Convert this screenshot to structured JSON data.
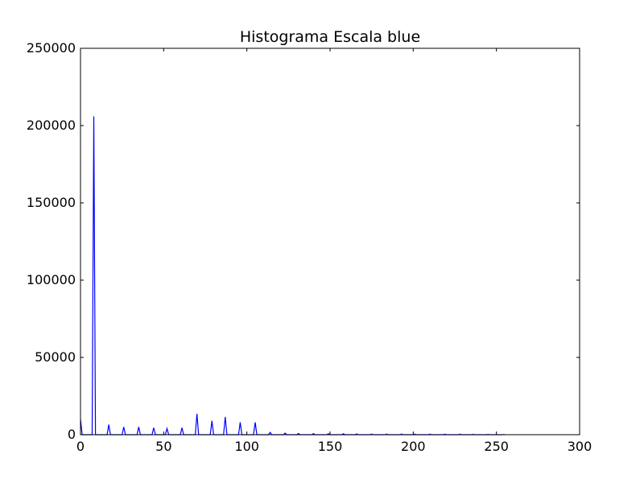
{
  "chart_data": {
    "type": "line",
    "title": "Histograma Escala blue",
    "xlabel": "",
    "ylabel": "",
    "xlim": [
      0,
      300
    ],
    "ylim": [
      0,
      250000
    ],
    "xticks": [
      0,
      50,
      100,
      150,
      200,
      250,
      300
    ],
    "yticks": [
      0,
      50000,
      100000,
      150000,
      200000,
      250000
    ],
    "grid": false,
    "legend": "none",
    "series": [
      {
        "color": "#0000ff",
        "x": [
          0,
          1,
          7,
          8,
          9,
          16,
          17,
          18,
          25,
          26,
          27,
          34,
          35,
          36,
          43,
          44,
          45,
          51,
          52,
          53,
          60,
          61,
          62,
          69,
          70,
          71,
          78,
          79,
          80,
          86,
          87,
          88,
          95,
          96,
          97,
          104,
          105,
          106,
          113,
          114,
          115,
          122,
          123,
          124,
          130,
          131,
          132,
          139,
          140,
          141,
          148,
          149,
          150,
          157,
          158,
          159,
          165,
          166,
          167,
          174,
          175,
          176,
          183,
          184,
          185,
          192,
          193,
          194,
          200,
          201,
          202,
          209,
          210,
          211,
          218,
          219,
          220,
          227,
          228,
          229,
          235,
          236,
          237,
          244,
          245,
          246,
          253,
          254,
          255
        ],
        "y": [
          10000,
          0,
          0,
          206000,
          0,
          0,
          6500,
          0,
          0,
          5000,
          0,
          0,
          5000,
          0,
          0,
          4500,
          0,
          0,
          4000,
          0,
          0,
          4500,
          0,
          0,
          13500,
          0,
          0,
          9000,
          0,
          0,
          11500,
          0,
          0,
          8000,
          0,
          0,
          8000,
          0,
          0,
          1500,
          0,
          0,
          1000,
          0,
          0,
          800,
          0,
          0,
          700,
          0,
          0,
          600,
          0,
          0,
          600,
          0,
          0,
          500,
          0,
          0,
          400,
          0,
          0,
          400,
          0,
          0,
          400,
          0,
          0,
          300,
          0,
          0,
          300,
          0,
          0,
          300,
          0,
          0,
          300,
          0,
          0,
          200,
          0,
          0,
          200,
          0,
          0,
          100,
          0
        ]
      }
    ]
  }
}
